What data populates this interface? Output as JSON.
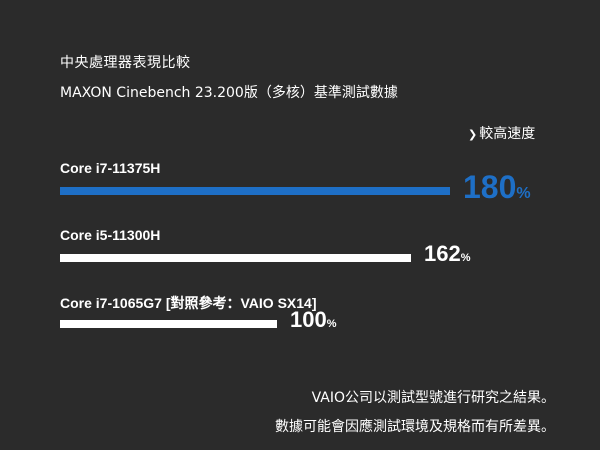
{
  "title": "中央處理器表現比較",
  "subtitle": "MAXON Cinebench 23.200版（多核）基準測試數據",
  "legend_marker": "❯",
  "legend_text": "較高速度",
  "notes": [
    "VAIO公司以測試型號進行研究之結果。",
    "數據可能會因應測試環境及規格而有所差異。"
  ],
  "colors": {
    "background": "#2b2b2b",
    "highlight": "#1e6fc6",
    "bar": "#ffffff",
    "text": "#ffffff"
  },
  "chart_data": {
    "type": "bar",
    "orientation": "horizontal",
    "title": "中央處理器表現比較",
    "subtitle": "MAXON Cinebench 23.200版（多核）基準測試數據",
    "unit": "%",
    "categories": [
      "Core i7-11375H",
      "Core i5-11300H",
      "Core i7-1065G7 [對照參考：VAIO SX14]"
    ],
    "values": [
      180,
      162,
      100
    ],
    "highlighted_index": 0,
    "xlim": [
      0,
      180
    ],
    "grid": false
  }
}
